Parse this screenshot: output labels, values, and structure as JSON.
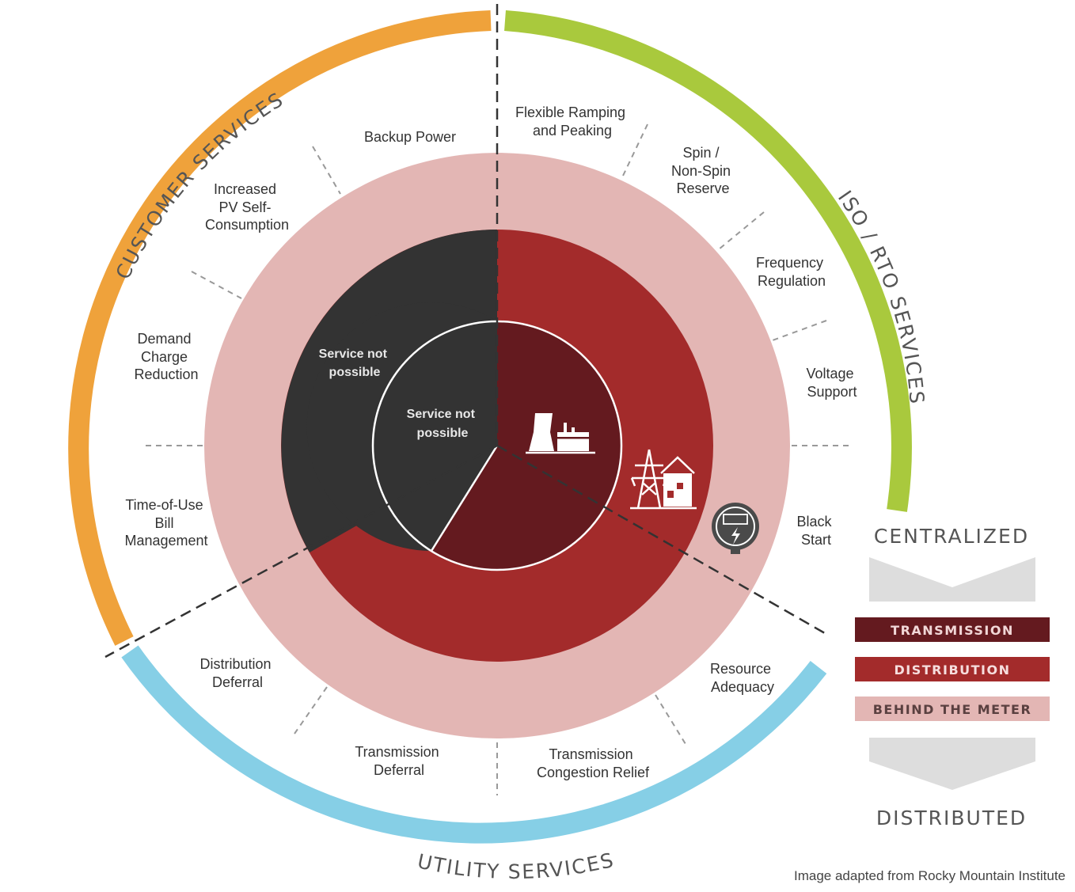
{
  "outer_arcs": {
    "customer": {
      "label": "CUSTOMER SERVICES",
      "color": "#EFA23B"
    },
    "iso": {
      "label": "ISO / RTO SERVICES",
      "color": "#A9C93D"
    },
    "utility": {
      "label": "UTILITY SERVICES",
      "color": "#86CFE6"
    }
  },
  "services": {
    "backup_power": [
      "Backup Power"
    ],
    "flexible_ramping": [
      "Flexible Ramping",
      "and Peaking"
    ],
    "spin_reserve": [
      "Spin /",
      "Non-Spin",
      "Reserve"
    ],
    "frequency_regulation": [
      "Frequency",
      "Regulation"
    ],
    "voltage_support": [
      "Voltage",
      "Support"
    ],
    "black_start": [
      "Black",
      "Start"
    ],
    "resource_adequacy": [
      "Resource",
      "Adequacy"
    ],
    "transmission_congestion": [
      "Transmission",
      "Congestion Relief"
    ],
    "transmission_deferral": [
      "Transmission",
      "Deferral"
    ],
    "distribution_deferral": [
      "Distribution",
      "Deferral"
    ],
    "time_of_use": [
      "Time-of-Use",
      "Bill",
      "Management"
    ],
    "demand_charge": [
      "Demand",
      "Charge",
      "Reduction"
    ],
    "pv_self_consumption": [
      "Increased",
      "PV Self-",
      "Consumption"
    ]
  },
  "inner_labels": {
    "middle": [
      "Service not",
      "possible"
    ],
    "inner": [
      "Service not",
      "possible"
    ]
  },
  "icons": [
    "power-plant-icon",
    "transmission-tower-house-icon",
    "electric-meter-icon"
  ],
  "legend": {
    "top": "CENTRALIZED",
    "bottom": "DISTRIBUTED",
    "items": [
      {
        "label": "TRANSMISSION",
        "color": "#641A1F",
        "text_color": "#F1D7D7"
      },
      {
        "label": "DISTRIBUTION",
        "color": "#A32B2B",
        "text_color": "#F6DEDE"
      },
      {
        "label": "BEHIND THE METER",
        "color": "#E3B6B4",
        "text_color": "#5A4040"
      }
    ]
  },
  "colors": {
    "behind_the_meter": "#E3B6B4",
    "distribution": "#A32B2B",
    "transmission": "#641A1F",
    "not_possible": "#333333"
  },
  "credit": "Image adapted from Rocky Mountain Institute"
}
